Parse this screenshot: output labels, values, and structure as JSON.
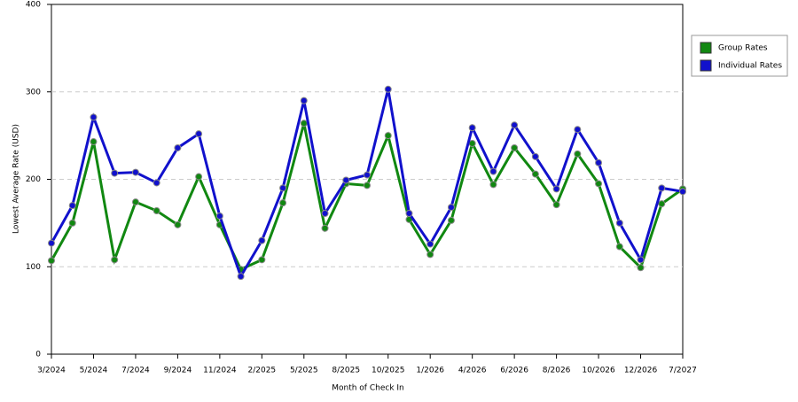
{
  "chart_data": {
    "type": "line",
    "categories": [
      "3/2024",
      null,
      "5/2024",
      null,
      "7/2024",
      null,
      "9/2024",
      null,
      "11/2024",
      null,
      "2/2025",
      null,
      "5/2025",
      null,
      "8/2025",
      null,
      "10/2025",
      null,
      "1/2026",
      null,
      "4/2026",
      null,
      "6/2026",
      null,
      "8/2026",
      null,
      "10/2026",
      null,
      "12/2026",
      null,
      "7/2027"
    ],
    "series": [
      {
        "name": "Group Rates",
        "color": "#118811",
        "values": [
          107,
          150,
          243,
          108,
          174,
          164,
          148,
          203,
          148,
          97,
          108,
          173,
          264,
          144,
          195,
          193,
          250,
          154,
          114,
          153,
          241,
          194,
          236,
          206,
          171,
          229,
          195,
          123,
          99,
          172,
          189
        ]
      },
      {
        "name": "Individual Rates",
        "color": "#1111cc",
        "values": [
          127,
          170,
          271,
          207,
          208,
          196,
          236,
          252,
          158,
          89,
          130,
          190,
          290,
          161,
          199,
          205,
          303,
          161,
          126,
          168,
          259,
          209,
          262,
          226,
          189,
          257,
          219,
          150,
          108,
          190,
          186
        ]
      }
    ],
    "xlabel": "Month of Check In",
    "ylabel": "Lowest Average Rate (USD)",
    "ylim": [
      0,
      400
    ],
    "yticks": [
      0,
      100,
      200,
      300,
      400
    ],
    "grid": true,
    "legend": "upper right"
  }
}
